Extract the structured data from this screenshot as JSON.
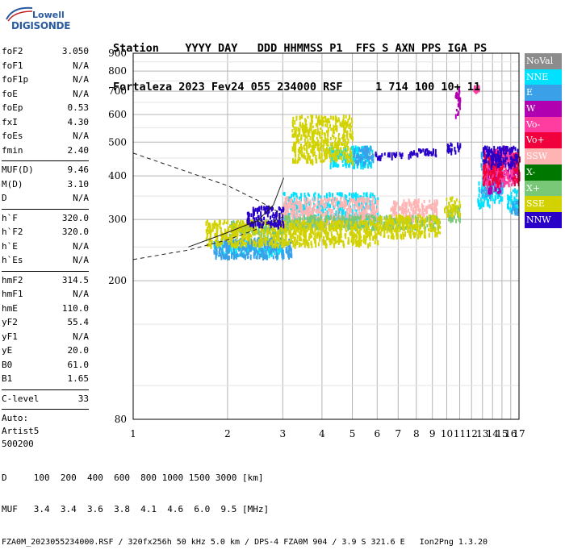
{
  "logo": {
    "brand": "Lowell",
    "product": "DIGISONDE"
  },
  "header": {
    "line1": "Station    YYYY DAY   DDD HHMMSS P1  FFS S AXN PPS IGA PS",
    "line2": "Fortaleza 2023 Fev24 055 234000 RSF     1 714 100 10+ 11"
  },
  "params_block1": [
    {
      "label": "foF2",
      "value": "3.050"
    },
    {
      "label": "foF1",
      "value": "N/A"
    },
    {
      "label": "foF1p",
      "value": "N/A"
    },
    {
      "label": "foE",
      "value": "N/A"
    },
    {
      "label": "foEp",
      "value": "0.53"
    },
    {
      "label": "fxI",
      "value": "4.30"
    },
    {
      "label": "foEs",
      "value": "N/A"
    },
    {
      "label": "fmin",
      "value": "2.40"
    }
  ],
  "params_block2": [
    {
      "label": "MUF(D)",
      "value": "9.46"
    },
    {
      "label": "M(D)",
      "value": "3.10"
    },
    {
      "label": "D",
      "value": "N/A"
    }
  ],
  "params_block3": [
    {
      "label": "h`F",
      "value": "320.0"
    },
    {
      "label": "h`F2",
      "value": "320.0"
    },
    {
      "label": "h`E",
      "value": "N/A"
    },
    {
      "label": "h`Es",
      "value": "N/A"
    }
  ],
  "params_block4": [
    {
      "label": "hmF2",
      "value": "314.5"
    },
    {
      "label": "hmF1",
      "value": "N/A"
    },
    {
      "label": "hmE",
      "value": "110.0"
    },
    {
      "label": "yF2",
      "value": "55.4"
    },
    {
      "label": "yF1",
      "value": "N/A"
    },
    {
      "label": "yE",
      "value": "20.0"
    },
    {
      "label": "B0",
      "value": "61.0"
    },
    {
      "label": "B1",
      "value": "1.65"
    }
  ],
  "params_block5": [
    {
      "label": "C-level",
      "value": "33"
    }
  ],
  "params_text": [
    "Auto:",
    "Artist5",
    "500200"
  ],
  "legend": [
    {
      "name": "NoVal",
      "color": "#8c8c8c"
    },
    {
      "name": "NNE",
      "color": "#00e0ff"
    },
    {
      "name": "E",
      "color": "#3aa0e8"
    },
    {
      "name": "W",
      "color": "#b000b0"
    },
    {
      "name": "Vo-",
      "color": "#ff3ca0"
    },
    {
      "name": "Vo+",
      "color": "#f0003c"
    },
    {
      "name": "SSW",
      "color": "#ffb4b4"
    },
    {
      "name": "X-",
      "color": "#007800"
    },
    {
      "name": "X+",
      "color": "#78c878"
    },
    {
      "name": "SSE",
      "color": "#d2d200"
    },
    {
      "name": "NNW",
      "color": "#2800c8"
    }
  ],
  "footer": {
    "line1": "D     100  200  400  600  800 1000 1500 3000 [km]",
    "line2": "MUF   3.4  3.4  3.6  3.8  4.1  4.6  6.0  9.5 [MHz]",
    "line3": "FZA0M_2023055234000.RSF / 320fx256h 50 kHz 5.0 km / DPS-4 FZA0M 904 / 3.9 S 321.6 E   Ion2Png 1.3.20"
  },
  "chart_data": {
    "type": "scatter",
    "title": "",
    "xlabel": "",
    "ylabel": "",
    "xlim": [
      1,
      17
    ],
    "ylim": [
      80,
      900
    ],
    "x_scale": "log",
    "y_scale": "log",
    "x_ticks": [
      "1",
      "2",
      "3",
      "4",
      "5",
      "6",
      "7",
      "8",
      "9",
      "10",
      "11",
      "12",
      "13",
      "14",
      "15",
      "16",
      "17"
    ],
    "y_ticks": [
      "80",
      "200",
      "300",
      "400",
      "500",
      "600",
      "700",
      "800",
      "900"
    ],
    "grid": true,
    "legend_placement": "right",
    "series": [
      {
        "name": "NNE",
        "color": "#00e0ff",
        "clusters": [
          {
            "x": [
              1.8,
              3.0
            ],
            "y": [
              238,
              262
            ]
          },
          {
            "x": [
              3.0,
              6.0
            ],
            "y": [
              290,
              360
            ]
          },
          {
            "x": [
              4.2,
              5.8
            ],
            "y": [
              430,
              490
            ]
          },
          {
            "x": [
              12.5,
              13.8
            ],
            "y": [
              330,
              390
            ]
          },
          {
            "x": [
              13.8,
              15.0
            ],
            "y": [
              340,
              400
            ]
          },
          {
            "x": [
              15.5,
              16.8
            ],
            "y": [
              320,
              370
            ]
          }
        ]
      },
      {
        "name": "E",
        "color": "#3aa0e8",
        "clusters": [
          {
            "x": [
              1.8,
              3.2
            ],
            "y": [
              235,
              268
            ]
          },
          {
            "x": [
              5.0,
              5.8
            ],
            "y": [
              440,
              490
            ]
          },
          {
            "x": [
              12.8,
              13.8
            ],
            "y": [
              350,
              480
            ]
          },
          {
            "x": [
              14.0,
              15.0
            ],
            "y": [
              360,
              460
            ]
          },
          {
            "x": [
              16.0,
              16.8
            ],
            "y": [
              310,
              340
            ]
          }
        ]
      },
      {
        "name": "W",
        "color": "#b000b0",
        "clusters": [
          {
            "x": [
              13.5,
              14.8
            ],
            "y": [
              360,
              480
            ]
          },
          {
            "x": [
              15.0,
              16.8
            ],
            "y": [
              400,
              490
            ]
          },
          {
            "x": [
              10.6,
              11.0
            ],
            "y": [
              600,
              720
            ]
          }
        ]
      },
      {
        "name": "Vo-",
        "color": "#ff3ca0",
        "clusters": [
          {
            "x": [
              13.0,
              15.0
            ],
            "y": [
              380,
              480
            ]
          },
          {
            "x": [
              15.0,
              16.5
            ],
            "y": [
              380,
              470
            ]
          },
          {
            "x": [
              12.1,
              12.7
            ],
            "y": [
              710,
              730
            ]
          }
        ]
      },
      {
        "name": "Vo+",
        "color": "#f0003c",
        "clusters": [
          {
            "x": [
              13.0,
              15.0
            ],
            "y": [
              380,
              470
            ]
          },
          {
            "x": [
              16.2,
              17.0
            ],
            "y": [
              380,
              470
            ]
          }
        ]
      },
      {
        "name": "SSW",
        "color": "#ffb4b4",
        "clusters": [
          {
            "x": [
              3.0,
              6.0
            ],
            "y": [
              290,
              350
            ]
          },
          {
            "x": [
              6.6,
              9.3
            ],
            "y": [
              300,
              345
            ]
          },
          {
            "x": [
              13.0,
              15.0
            ],
            "y": [
              400,
              470
            ]
          }
        ]
      },
      {
        "name": "X+",
        "color": "#78c878",
        "clusters": [
          {
            "x": [
              2.0,
              3.0
            ],
            "y": [
              270,
              300
            ]
          },
          {
            "x": [
              3.0,
              9.5
            ],
            "y": [
              285,
              310
            ]
          },
          {
            "x": [
              10.0,
              11.0
            ],
            "y": [
              300,
              330
            ]
          }
        ]
      },
      {
        "name": "SSE",
        "color": "#d2d200",
        "clusters": [
          {
            "x": [
              1.7,
              3.0
            ],
            "y": [
              255,
              300
            ]
          },
          {
            "x": [
              3.0,
              6.0
            ],
            "y": [
              255,
              300
            ]
          },
          {
            "x": [
              6.0,
              9.5
            ],
            "y": [
              270,
              310
            ]
          },
          {
            "x": [
              3.2,
              5.0
            ],
            "y": [
              440,
              600
            ]
          },
          {
            "x": [
              9.8,
              11.0
            ],
            "y": [
              310,
              350
            ]
          }
        ]
      },
      {
        "name": "NNW",
        "color": "#2800c8",
        "clusters": [
          {
            "x": [
              5.8,
              7.2
            ],
            "y": [
              455,
              470
            ]
          },
          {
            "x": [
              7.5,
              9.2
            ],
            "y": [
              460,
              480
            ]
          },
          {
            "x": [
              2.3,
              3.0
            ],
            "y": [
              290,
              330
            ]
          },
          {
            "x": [
              10.0,
              11.0
            ],
            "y": [
              470,
              500
            ]
          },
          {
            "x": [
              13.0,
              16.8
            ],
            "y": [
              430,
              490
            ]
          }
        ]
      }
    ],
    "traces": [
      {
        "name": "dashed_upper",
        "style": "dashed",
        "points": [
          [
            1.0,
            465
          ],
          [
            1.5,
            410
          ],
          [
            2.0,
            375
          ],
          [
            2.5,
            340
          ],
          [
            3.0,
            310
          ]
        ]
      },
      {
        "name": "dashed_lower",
        "style": "dashed",
        "points": [
          [
            1.0,
            230
          ],
          [
            1.5,
            245
          ],
          [
            2.0,
            262
          ],
          [
            2.5,
            282
          ],
          [
            3.0,
            305
          ]
        ]
      },
      {
        "name": "profile",
        "style": "solid",
        "points": [
          [
            1.5,
            250
          ],
          [
            2.0,
            275
          ],
          [
            2.5,
            298
          ],
          [
            2.8,
            330
          ],
          [
            3.02,
            395
          ]
        ]
      }
    ]
  }
}
